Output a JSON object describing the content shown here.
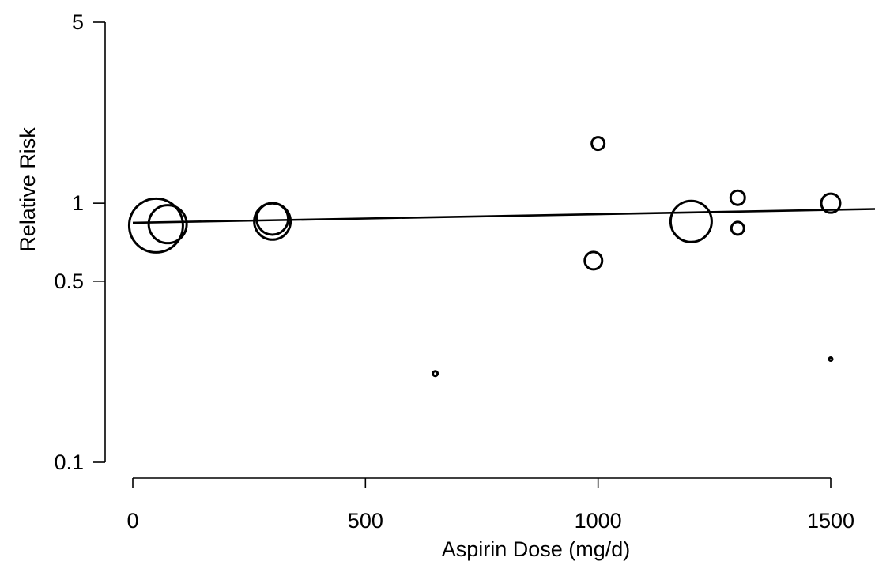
{
  "chart_data": {
    "type": "scatter",
    "title": "",
    "xlabel": "Aspirin Dose (mg/d)",
    "ylabel": "Relative Risk",
    "xlim": [
      0,
      1600
    ],
    "ylim": [
      0.1,
      5
    ],
    "y_scale": "log",
    "x_ticks": [
      0,
      500,
      1000,
      1500
    ],
    "y_ticks": [
      0.1,
      0.5,
      1,
      5
    ],
    "x_tick_labels": [
      "0",
      "500",
      "1000",
      "1500"
    ],
    "y_tick_labels": [
      "0.1",
      "0.5",
      "1",
      "5"
    ],
    "grid": false,
    "marker_style": "open circles sized by study weight",
    "points": [
      {
        "x": 50,
        "y": 0.82,
        "weight": 34
      },
      {
        "x": 75,
        "y": 0.83,
        "weight": 24
      },
      {
        "x": 300,
        "y": 0.85,
        "weight": 23
      },
      {
        "x": 300,
        "y": 0.87,
        "weight": 20
      },
      {
        "x": 650,
        "y": 0.22,
        "weight": 3
      },
      {
        "x": 990,
        "y": 0.6,
        "weight": 11
      },
      {
        "x": 1000,
        "y": 1.7,
        "weight": 8
      },
      {
        "x": 1200,
        "y": 0.85,
        "weight": 26
      },
      {
        "x": 1300,
        "y": 1.05,
        "weight": 9
      },
      {
        "x": 1300,
        "y": 0.8,
        "weight": 8
      },
      {
        "x": 1500,
        "y": 1.0,
        "weight": 12
      },
      {
        "x": 1500,
        "y": 0.25,
        "weight": 2
      }
    ],
    "trend_line": {
      "x": [
        0,
        1600
      ],
      "y": [
        0.84,
        0.95
      ]
    }
  }
}
